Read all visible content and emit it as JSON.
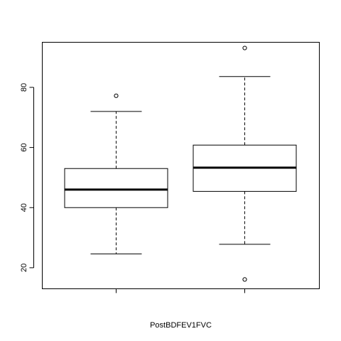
{
  "chart_data": {
    "type": "box",
    "title": "",
    "xlabel": "PostBDFEV1FVC",
    "ylabel": "",
    "ylim": [
      13,
      95
    ],
    "y_ticks": [
      20,
      40,
      60,
      80
    ],
    "grid": false,
    "legend": "none",
    "boxes": [
      {
        "whisker_low": 24.6,
        "q1": 40.0,
        "median": 46.0,
        "q3": 53.0,
        "whisker_high": 72.0,
        "outliers": [
          77.2
        ]
      },
      {
        "whisker_low": 27.8,
        "q1": 45.4,
        "median": 53.3,
        "q3": 60.8,
        "whisker_high": 83.6,
        "outliers": [
          93.1,
          16.1
        ]
      }
    ]
  }
}
